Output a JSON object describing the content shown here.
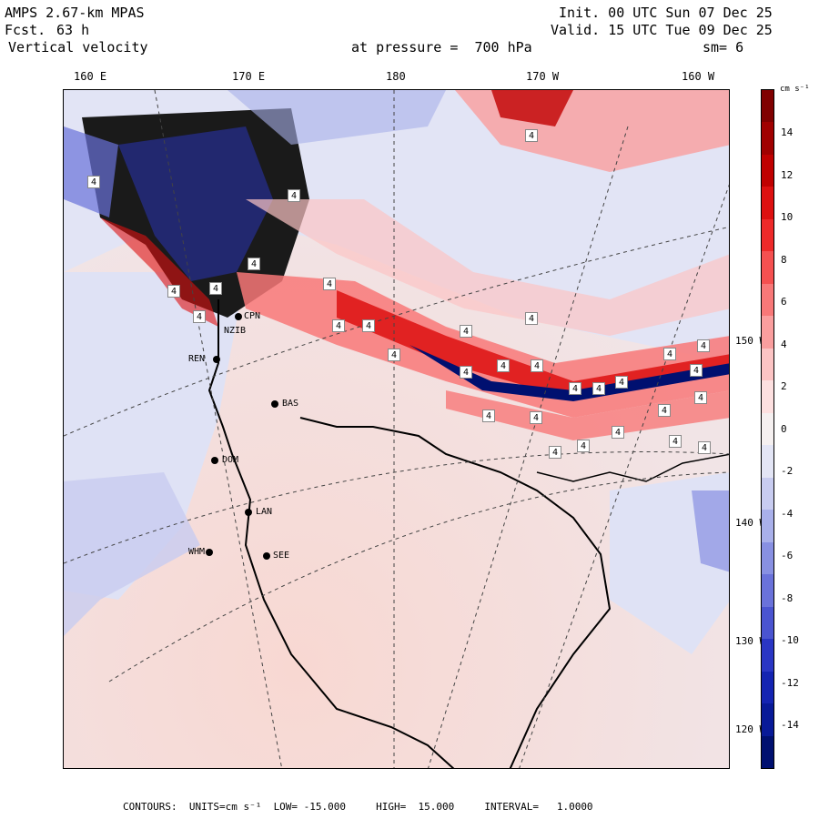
{
  "header": {
    "model": "AMPS 2.67-km MPAS",
    "fcst_label": "Fcst.",
    "fcst_value": "63 h",
    "field": "Vertical velocity",
    "init": "Init. 00 UTC Sun 07 Dec 25",
    "valid": "Valid. 15 UTC Tue 09 Dec 25",
    "pressure": "at pressure =  700 hPa",
    "smooth": "sm= 6"
  },
  "longitude_labels": [
    "160 E",
    "170 E",
    "180",
    "170 W",
    "160 W"
  ],
  "latitude_labels": [
    "150 W",
    "140 W",
    "130 W",
    "120 W"
  ],
  "colorbar": {
    "unit": "cm s⁻¹",
    "labels": [
      "14",
      "12",
      "10",
      "8",
      "6",
      "4",
      "2",
      "0",
      "-2",
      "-4",
      "-6",
      "-8",
      "-10",
      "-12",
      "-14"
    ],
    "colors": [
      "#800000",
      "#a00000",
      "#c00000",
      "#dd1010",
      "#ee2a2a",
      "#f55050",
      "#f87878",
      "#fa9e9e",
      "#fcc4c4",
      "#fde0e0",
      "#f5f0f0",
      "#e3e5f5",
      "#c8ccf0",
      "#a9b0ea",
      "#8890e2",
      "#6a72da",
      "#4a54d0",
      "#2a36c4",
      "#1424b2",
      "#081a98",
      "#001070"
    ]
  },
  "stations": [
    {
      "name": "CPN"
    },
    {
      "name": "NZIB"
    },
    {
      "name": "REN"
    },
    {
      "name": "BAS"
    },
    {
      "name": "DOM"
    },
    {
      "name": "LAN"
    },
    {
      "name": "WHM"
    },
    {
      "name": "SEE"
    }
  ],
  "contour_label": "4",
  "footer": "CONTOURS:  UNITS=cm s⁻¹  LOW= -15.000     HIGH=  15.000     INTERVAL=   1.0000"
}
